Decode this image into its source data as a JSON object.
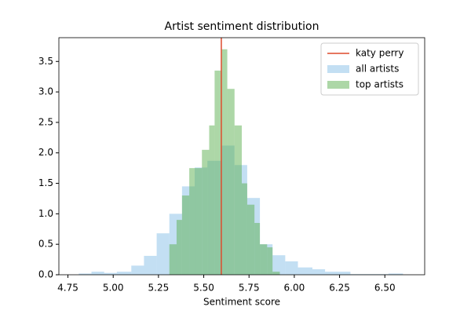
{
  "chart_data": {
    "type": "histogram",
    "title": "Artist sentiment distribution",
    "x_label": "Sentiment score",
    "xlim": [
      4.7,
      6.72
    ],
    "ylim": [
      0,
      3.89
    ],
    "xticks": [
      4.75,
      {
        "value": 5.0,
        "label": "5.00"
      },
      5.25,
      {
        "value": 5.5,
        "label": "5.50"
      },
      5.75,
      {
        "value": 6.0,
        "label": "6.00"
      },
      6.25,
      {
        "value": 6.5,
        "label": "6.50"
      }
    ],
    "yticks": [
      {
        "value": 0,
        "label": "0.0"
      },
      0.5,
      {
        "value": 1,
        "label": "1.0"
      },
      1.5,
      {
        "value": 2,
        "label": "2.0"
      },
      2.5,
      {
        "value": 3,
        "label": "3.0"
      },
      3.5
    ],
    "legend": "upper right",
    "vline": {
      "name": "katy perry",
      "x": 5.597,
      "color": "#dd4a2c"
    },
    "series": [
      {
        "name": "all artists",
        "color": "#87bfe8",
        "alpha": 0.5,
        "bins": [
          4.81,
          4.88,
          4.95,
          5.02,
          5.1,
          5.17,
          5.24,
          5.31,
          5.38,
          5.45,
          5.52,
          5.6,
          5.67,
          5.74,
          5.81,
          5.88,
          5.95,
          6.02,
          6.1,
          6.17,
          6.24,
          6.31,
          6.38,
          6.45,
          6.52,
          6.6
        ],
        "values": [
          0.02,
          0.05,
          0.03,
          0.05,
          0.15,
          0.31,
          0.68,
          1.0,
          1.45,
          1.76,
          1.87,
          2.12,
          1.8,
          1.26,
          0.5,
          0.32,
          0.22,
          0.12,
          0.09,
          0.05,
          0.05,
          0.01,
          0.01,
          0.01,
          0.02
        ]
      },
      {
        "name": "top artists",
        "color": "#5cb050",
        "alpha": 0.5,
        "bins": [
          5.31,
          5.35,
          5.38,
          5.42,
          5.45,
          5.49,
          5.53,
          5.56,
          5.6,
          5.63,
          5.67,
          5.71,
          5.74,
          5.78,
          5.81,
          5.85,
          5.88,
          5.92
        ],
        "values": [
          0.5,
          0.9,
          1.3,
          1.75,
          1.75,
          2.05,
          2.45,
          3.35,
          3.7,
          3.05,
          2.45,
          1.5,
          1.15,
          0.85,
          0.5,
          0.45,
          0.05
        ]
      }
    ]
  }
}
